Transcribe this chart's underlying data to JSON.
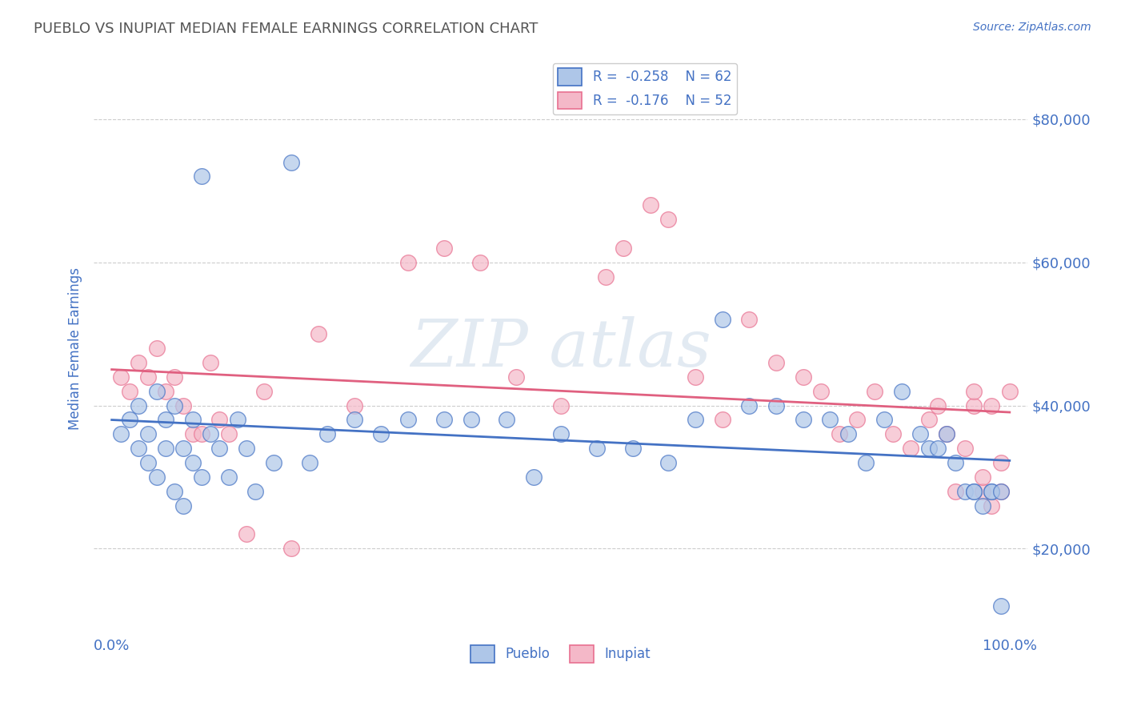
{
  "title": "PUEBLO VS INUPIAT MEDIAN FEMALE EARNINGS CORRELATION CHART",
  "source_text": "Source: ZipAtlas.com",
  "ylabel": "Median Female Earnings",
  "xlim": [
    -0.02,
    1.02
  ],
  "ylim": [
    8000,
    88000
  ],
  "yticks": [
    20000,
    40000,
    60000,
    80000
  ],
  "yticklabels": [
    "$20,000",
    "$40,000",
    "$60,000",
    "$80,000"
  ],
  "title_color": "#555555",
  "axis_color": "#4472c4",
  "pueblo_color": "#aec6e8",
  "inupiat_color": "#f4b8c8",
  "pueblo_edge_color": "#4472c4",
  "inupiat_edge_color": "#e87090",
  "pueblo_line_color": "#4472c4",
  "inupiat_line_color": "#e06080",
  "background_color": "#ffffff",
  "watermark_color": "#d0dcea",
  "pueblo_scatter_x": [
    0.01,
    0.02,
    0.03,
    0.03,
    0.04,
    0.04,
    0.05,
    0.05,
    0.06,
    0.06,
    0.07,
    0.07,
    0.08,
    0.08,
    0.09,
    0.09,
    0.1,
    0.1,
    0.11,
    0.12,
    0.13,
    0.14,
    0.15,
    0.16,
    0.18,
    0.2,
    0.22,
    0.24,
    0.27,
    0.3,
    0.33,
    0.37,
    0.4,
    0.44,
    0.47,
    0.5,
    0.54,
    0.58,
    0.62,
    0.65,
    0.68,
    0.71,
    0.74,
    0.77,
    0.8,
    0.82,
    0.84,
    0.86,
    0.88,
    0.9,
    0.91,
    0.92,
    0.93,
    0.94,
    0.95,
    0.96,
    0.96,
    0.97,
    0.98,
    0.98,
    0.99,
    0.99
  ],
  "pueblo_scatter_y": [
    36000,
    38000,
    40000,
    34000,
    36000,
    32000,
    42000,
    30000,
    38000,
    34000,
    40000,
    28000,
    34000,
    26000,
    38000,
    32000,
    72000,
    30000,
    36000,
    34000,
    30000,
    38000,
    34000,
    28000,
    32000,
    74000,
    32000,
    36000,
    38000,
    36000,
    38000,
    38000,
    38000,
    38000,
    30000,
    36000,
    34000,
    34000,
    32000,
    38000,
    52000,
    40000,
    40000,
    38000,
    38000,
    36000,
    32000,
    38000,
    42000,
    36000,
    34000,
    34000,
    36000,
    32000,
    28000,
    28000,
    28000,
    26000,
    28000,
    28000,
    28000,
    12000
  ],
  "inupiat_scatter_x": [
    0.01,
    0.02,
    0.03,
    0.04,
    0.05,
    0.06,
    0.07,
    0.08,
    0.09,
    0.1,
    0.11,
    0.12,
    0.13,
    0.15,
    0.17,
    0.2,
    0.23,
    0.27,
    0.33,
    0.37,
    0.41,
    0.45,
    0.5,
    0.55,
    0.57,
    0.6,
    0.62,
    0.65,
    0.68,
    0.71,
    0.74,
    0.77,
    0.79,
    0.81,
    0.83,
    0.85,
    0.87,
    0.89,
    0.91,
    0.92,
    0.93,
    0.94,
    0.95,
    0.96,
    0.96,
    0.97,
    0.97,
    0.98,
    0.98,
    0.99,
    0.99,
    1.0
  ],
  "inupiat_scatter_y": [
    44000,
    42000,
    46000,
    44000,
    48000,
    42000,
    44000,
    40000,
    36000,
    36000,
    46000,
    38000,
    36000,
    22000,
    42000,
    20000,
    50000,
    40000,
    60000,
    62000,
    60000,
    44000,
    40000,
    58000,
    62000,
    68000,
    66000,
    44000,
    38000,
    52000,
    46000,
    44000,
    42000,
    36000,
    38000,
    42000,
    36000,
    34000,
    38000,
    40000,
    36000,
    28000,
    34000,
    40000,
    42000,
    28000,
    30000,
    26000,
    40000,
    28000,
    32000,
    42000
  ]
}
